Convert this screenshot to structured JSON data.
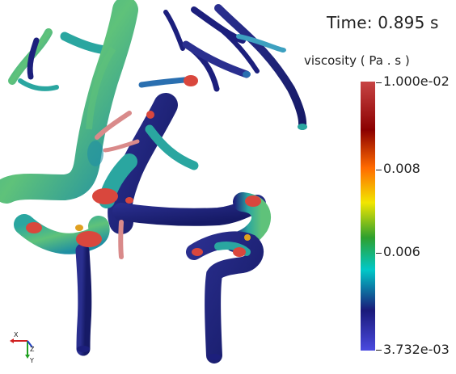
{
  "time": {
    "text": "Time:  0.895 s"
  },
  "colorbar": {
    "title": "viscosity ( Pa . s )",
    "max_label": "1.000e-02",
    "mid_label_1": "0.008",
    "mid_label_2": "0.006",
    "min_label": "3.732e-03",
    "colors": {
      "top": "#c84444",
      "upper": "#8b0000",
      "orange": "#ff6a00",
      "yellow": "#f2e600",
      "green": "#2ea02e",
      "cyan": "#00c8c8",
      "navy": "#1a1a7a",
      "bottom": "#4a4ae0"
    }
  },
  "scene": {
    "vessel_colors": {
      "navy": "#1c1f7c",
      "teal": "#2aa6a0",
      "green": "#5fc27a",
      "red": "#d9473d",
      "pink": "#d98a8a"
    }
  },
  "axes": {
    "x_label": "X",
    "y_label": "Y",
    "z_label": "Z"
  }
}
